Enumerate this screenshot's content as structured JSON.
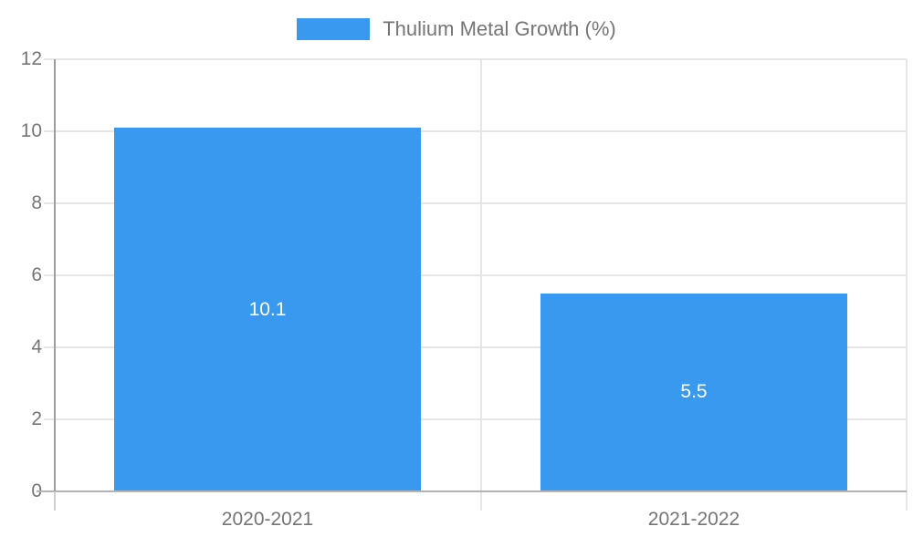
{
  "chart_data": {
    "type": "bar",
    "title": "",
    "xlabel": "",
    "ylabel": "",
    "categories": [
      "2020-2021",
      "2021-2022"
    ],
    "series": [
      {
        "name": "Thulium Metal Growth (%)",
        "values": [
          10.1,
          5.5
        ]
      }
    ],
    "yticks": [
      0,
      2,
      4,
      6,
      8,
      10,
      12
    ],
    "ylim": [
      0,
      12
    ],
    "grid": true,
    "legend_position": "top",
    "bar_value_labels_shown": true,
    "colors": {
      "bar": "#3999EE",
      "bar_value_label": "#FFFFFF",
      "axis_text": "#757575",
      "gridline": "#E6E6E6",
      "baseline": "#B3B3B3",
      "axis_line": "#9E9E9E",
      "axis_tick_below": "#CFCFCF",
      "background": "#FFFFFF"
    }
  }
}
